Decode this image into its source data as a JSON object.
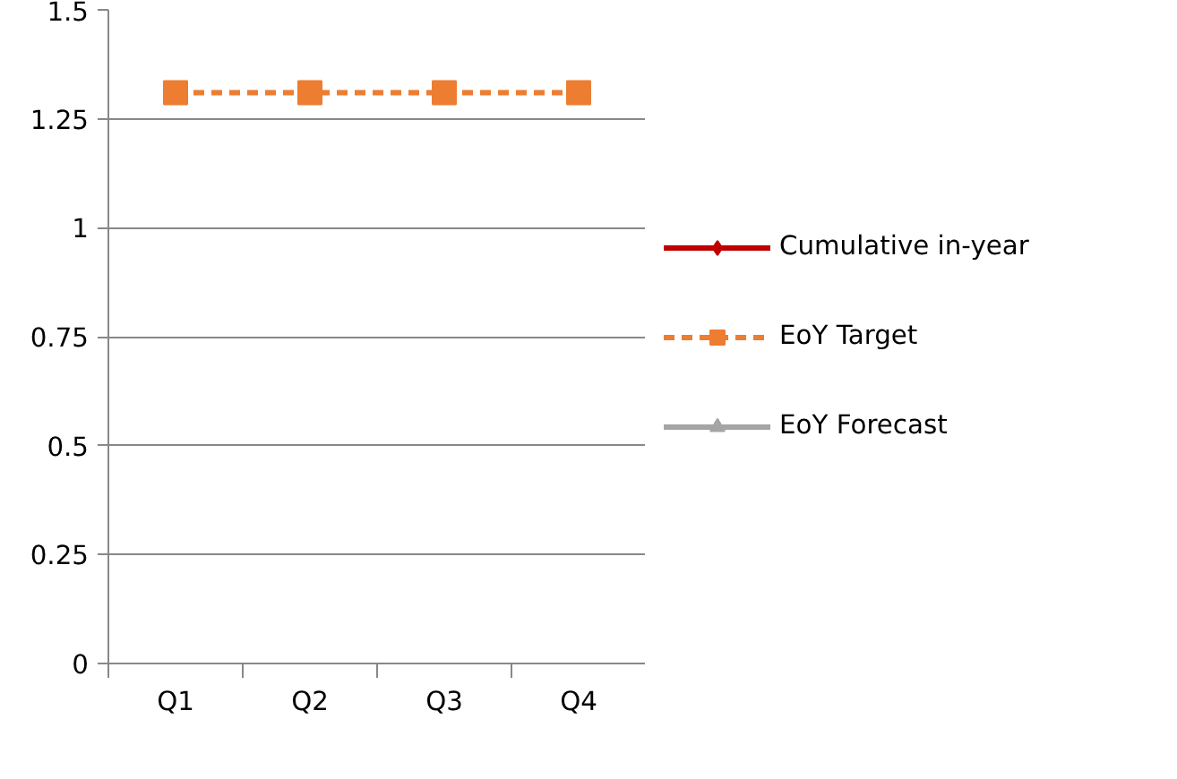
{
  "chart_data": {
    "type": "line",
    "categories": [
      "Q1",
      "Q2",
      "Q3",
      "Q4"
    ],
    "series": [
      {
        "name": "Cumulative in-year",
        "color": "#c00000",
        "values": [
          null,
          null,
          null,
          null
        ],
        "marker": "diamond",
        "line_style": "solid"
      },
      {
        "name": "EoY Target",
        "color": "#ed7d31",
        "values": [
          1.31,
          1.31,
          1.31,
          1.31
        ],
        "marker": "square",
        "line_style": "dashed"
      },
      {
        "name": "EoY Forecast",
        "color": "#a5a5a5",
        "values": [
          null,
          null,
          null,
          null
        ],
        "marker": "triangle",
        "line_style": "solid"
      }
    ],
    "ylim": [
      0,
      1.5
    ],
    "yticks": [
      0,
      0.25,
      0.5,
      0.75,
      1,
      1.25,
      1.5
    ],
    "grid": "y",
    "legend": "right"
  }
}
